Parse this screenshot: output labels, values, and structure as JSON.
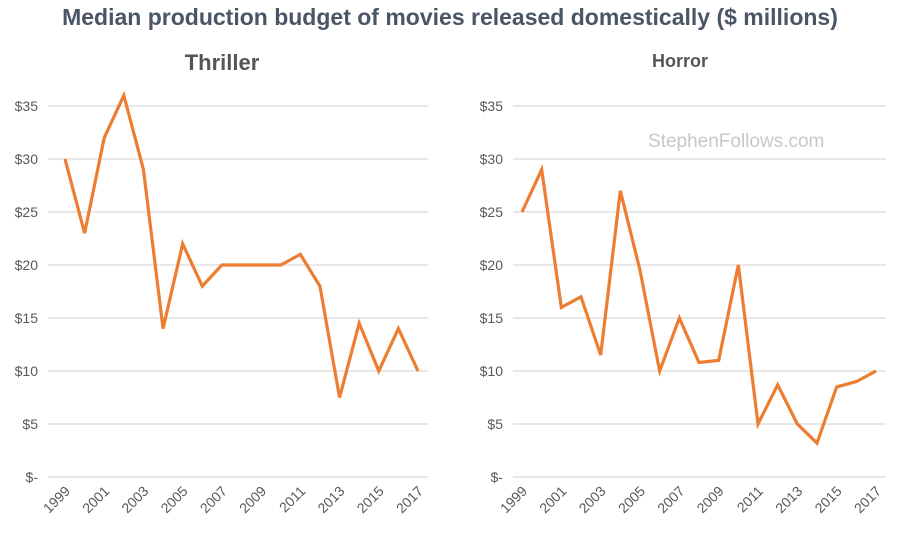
{
  "title": "Median production budget of movies released domestically ($ millions)",
  "watermark": "StephenFollows.com",
  "chart_data": [
    {
      "type": "line",
      "title": "Thriller",
      "x": [
        1999,
        2000,
        2001,
        2002,
        2003,
        2004,
        2005,
        2006,
        2007,
        2008,
        2009,
        2010,
        2011,
        2012,
        2013,
        2014,
        2015,
        2016,
        2017
      ],
      "values": [
        30,
        23,
        32,
        36,
        29,
        14,
        22,
        18,
        20,
        20,
        20,
        20,
        21,
        18,
        7.5,
        14.5,
        10,
        14,
        10
      ],
      "x_tick_labels": [
        "1999",
        "2001",
        "2003",
        "2005",
        "2007",
        "2009",
        "2011",
        "2013",
        "2015",
        "2017"
      ],
      "y_tick_labels": [
        "$-",
        "$5",
        "$10",
        "$15",
        "$20",
        "$25",
        "$30",
        "$35"
      ],
      "ylim": [
        0,
        35
      ],
      "grid": true,
      "color": "#ed7d31"
    },
    {
      "type": "line",
      "title": "Horror",
      "x": [
        1999,
        2000,
        2001,
        2002,
        2003,
        2004,
        2005,
        2006,
        2007,
        2008,
        2009,
        2010,
        2011,
        2012,
        2013,
        2014,
        2015,
        2016,
        2017
      ],
      "values": [
        25,
        29,
        16,
        17,
        11.5,
        27,
        19.5,
        10,
        15,
        10.8,
        11,
        20,
        5,
        8.7,
        5,
        3.2,
        8.5,
        9,
        10
      ],
      "x_tick_labels": [
        "1999",
        "2001",
        "2003",
        "2005",
        "2007",
        "2009",
        "2011",
        "2013",
        "2015",
        "2017"
      ],
      "y_tick_labels": [
        "$-",
        "$5",
        "$10",
        "$15",
        "$20",
        "$25",
        "$30",
        "$35"
      ],
      "ylim": [
        0,
        35
      ],
      "grid": true,
      "color": "#ed7d31"
    }
  ]
}
